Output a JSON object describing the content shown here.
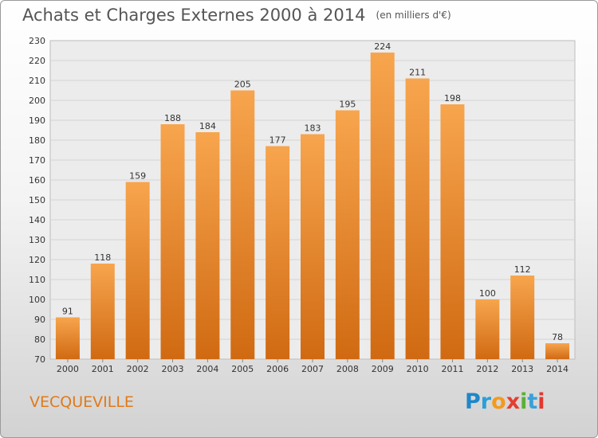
{
  "title": "Achats et Charges Externes 2000 à 2014",
  "subtitle": "(en milliers d'€)",
  "commune": "VECQUEVILLE",
  "logo": {
    "text": "Proxiti",
    "letters": [
      {
        "ch": "P",
        "color": "#1e88c8"
      },
      {
        "ch": "r",
        "color": "#2aa0d8"
      },
      {
        "ch": "o",
        "color": "#f39a1e"
      },
      {
        "ch": "x",
        "color": "#e53e2f"
      },
      {
        "ch": "i",
        "color": "#5ab035"
      },
      {
        "ch": "t",
        "color": "#3aa0d8"
      },
      {
        "ch": "i",
        "color": "#e2372f"
      }
    ]
  },
  "chart_data": {
    "type": "bar",
    "categories": [
      "2000",
      "2001",
      "2002",
      "2003",
      "2004",
      "2005",
      "2006",
      "2007",
      "2008",
      "2009",
      "2010",
      "2011",
      "2012",
      "2013",
      "2014"
    ],
    "values": [
      91,
      118,
      159,
      188,
      184,
      205,
      177,
      183,
      195,
      224,
      211,
      198,
      100,
      112,
      78
    ],
    "ylim": [
      70,
      230
    ],
    "ytick_step": 10,
    "xlabel": "",
    "ylabel": "",
    "grid": true,
    "bar_color_top": "#f7a54e",
    "bar_color_bottom": "#d06a12"
  }
}
